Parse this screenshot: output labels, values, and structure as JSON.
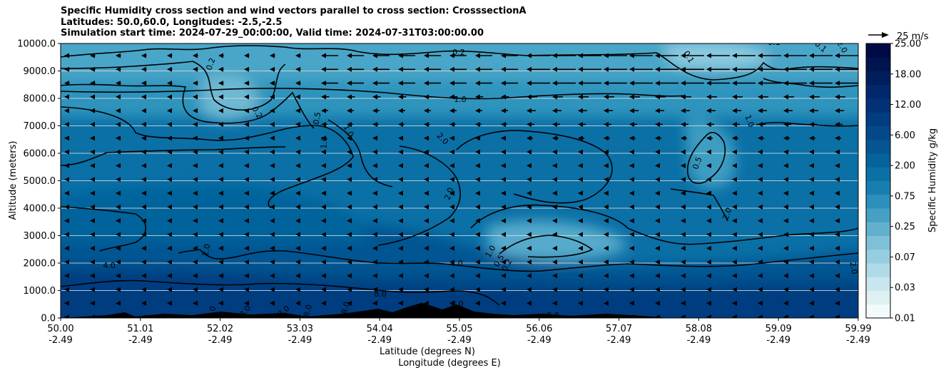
{
  "chart_data": {
    "type": "heatmap",
    "title_lines": [
      "Specific Humidity cross section and wind vectors parallel to cross section: CrosssectionA",
      "Latitudes: 50.0,60.0, Longitudes: -2.5,-2.5",
      "Simulation start time: 2024-07-29_00:00:00, Valid time: 2024-07-31T03:00:00.00"
    ],
    "ylabel": "Altitude (meters)",
    "xlabel_lines": [
      "Latitude (degrees N)",
      "Longitude (degrees E)"
    ],
    "ylim": [
      0,
      10000
    ],
    "yticks": [
      "0.0",
      "1000.0",
      "2000.0",
      "3000.0",
      "4000.0",
      "5000.0",
      "6000.0",
      "7000.0",
      "8000.0",
      "9000.0",
      "10000.0"
    ],
    "xticks": [
      {
        "lat": "50.00",
        "lon": "-2.49"
      },
      {
        "lat": "51.01",
        "lon": "-2.49"
      },
      {
        "lat": "52.02",
        "lon": "-2.49"
      },
      {
        "lat": "53.03",
        "lon": "-2.49"
      },
      {
        "lat": "54.04",
        "lon": "-2.49"
      },
      {
        "lat": "55.05",
        "lon": "-2.49"
      },
      {
        "lat": "56.06",
        "lon": "-2.49"
      },
      {
        "lat": "57.07",
        "lon": "-2.49"
      },
      {
        "lat": "58.08",
        "lon": "-2.49"
      },
      {
        "lat": "59.09",
        "lon": "-2.49"
      },
      {
        "lat": "59.99",
        "lon": "-2.49"
      }
    ],
    "colorbar": {
      "label": "Specific Humidity g/kg",
      "levels": [
        "0.01",
        "0.03",
        "0.07",
        "0.25",
        "0.75",
        "2.00",
        "6.00",
        "12.00",
        "18.00",
        "25.00"
      ],
      "colors": [
        "#f3fafb",
        "#dff0f3",
        "#c9e6ee",
        "#b0dae8",
        "#97cde0",
        "#7fc0d8",
        "#62b0cd",
        "#46a0c4",
        "#2c90ba",
        "#177fb0",
        "#0a70a6",
        "#05639c",
        "#045592",
        "#034989",
        "#023d80",
        "#023275",
        "#01286b",
        "#001e5c",
        "#001450",
        "#000a45"
      ]
    },
    "quiver_key": "25 m/s",
    "contour_labels": [
      "0.2",
      "0.5",
      "0.2",
      "0.1",
      "0.1",
      "0.1",
      "1.0",
      "0.2",
      "1.0",
      "1.0",
      "1.0",
      "2.0",
      "2.0",
      "0.5",
      "2.0",
      "2.0",
      "2.0",
      "1.0",
      "0.5",
      "0.2",
      "4.0",
      "4.0",
      "2.0",
      "8.0",
      "8.0",
      "8.0",
      "8.0",
      "8.0",
      "8.0",
      "8.0",
      "8.0",
      "8.0"
    ]
  }
}
